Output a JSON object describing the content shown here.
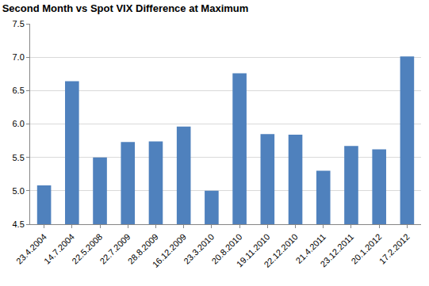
{
  "chart_data": {
    "type": "bar",
    "title": "Second Month vs Spot VIX Difference at Maximum",
    "categories": [
      "23.4.2004",
      "14.7.2004",
      "22.5.2008",
      "22.7.2009",
      "28.8.2009",
      "16.12.2009",
      "23.3.2010",
      "20.8.2010",
      "19.11.2010",
      "22.12.2010",
      "21.4.2011",
      "23.12.2011",
      "20.1.2012",
      "17.2.2012"
    ],
    "values": [
      5.08,
      6.64,
      5.5,
      5.73,
      5.74,
      5.96,
      5.0,
      6.76,
      5.85,
      5.84,
      5.3,
      5.67,
      5.62,
      7.01
    ],
    "color": "#4f81bd",
    "ylim": [
      4.5,
      7.5
    ],
    "yticks": [
      4.5,
      {
        "value": 5,
        "label": "5.0"
      },
      5.5,
      {
        "value": 6,
        "label": "6.0"
      },
      6.5,
      {
        "value": 7,
        "label": "7.0"
      },
      7.5
    ],
    "grid": true
  }
}
